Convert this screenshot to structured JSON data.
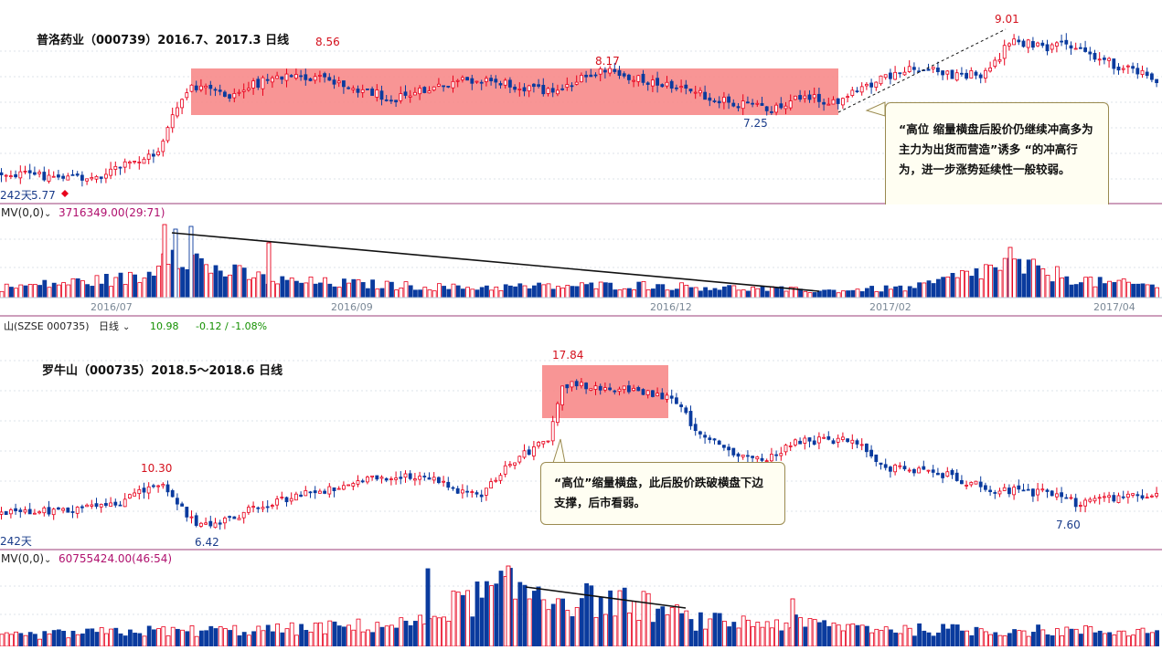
{
  "top_panel": {
    "title": "普洛药业（000739）2016.7、2017.3 日线",
    "days_label": "242天",
    "low_label": "5.77",
    "high_label": "9.01",
    "box_high_label": "8.56",
    "box_mid_label": "8.17",
    "box_low_label": "7.25",
    "volume_indicator_name": "MV(0,0)",
    "volume_indicator_value": "3716349.00(29:71)",
    "date_labels": [
      "2016/07",
      "2016/09",
      "2016/12",
      "2017/02",
      "2017/04"
    ],
    "callout_text": "“高位 缩量横盘后股价仍继续冲高多为主力为出货而营造”诱多 “的冲高行为，进一步涨势延续性一般较弱。"
  },
  "bottom_header": {
    "stock": "山(SZSE 000735)",
    "period": "日线",
    "price": "10.98",
    "change": "-0.12 / -1.08%"
  },
  "bottom_panel": {
    "title": "罗牛山（000735）2018.5～2018.6 日线",
    "days_label": "242天",
    "peak_label": "17.84",
    "left_high_label": "10.30",
    "left_low_label": "6.42",
    "right_low_label": "7.60",
    "volume_indicator_name": "MV(0,0)",
    "volume_indicator_value": "60755424.00(46:54)",
    "callout_text": "“高位”缩量横盘，此后股价跌破横盘下边支撑，后市看弱。"
  },
  "colors": {
    "up": "#e8001c",
    "down": "#0a3b9e",
    "box": "#f78a8a",
    "divider": "#9b3d7a",
    "grid": "#b9c8d4"
  },
  "chart_data": [
    {
      "type": "candlestick",
      "title": "普洛药业（000739）2016.7、2017.3 日线",
      "x_tick_labels": [
        "2016/07",
        "2016/09",
        "2016/12",
        "2017/02",
        "2017/04"
      ],
      "series": [
        {
          "name": "close",
          "keypoints": [
            {
              "x": "start",
              "y": 6.0
            },
            {
              "x": "lowest",
              "y": 5.77
            },
            {
              "x": "breakout",
              "y": 8.2
            },
            {
              "x": "box high",
              "y": 8.56
            },
            {
              "x": "box",
              "y": 8.17
            },
            {
              "x": "box low",
              "y": 7.25
            },
            {
              "x": "peak",
              "y": 9.01
            },
            {
              "x": "end",
              "y": 8.3
            }
          ]
        }
      ],
      "annotations": [
        "8.56",
        "8.17",
        "7.25",
        "9.01",
        "5.77"
      ]
    },
    {
      "type": "candlestick",
      "title": "罗牛山（000735）2018.5～2018.6 日线",
      "series": [
        {
          "name": "close",
          "keypoints": [
            {
              "x": "start",
              "y": 8.5
            },
            {
              "x": "high",
              "y": 10.3
            },
            {
              "x": "low",
              "y": 6.42
            },
            {
              "x": "peak",
              "y": 17.84
            },
            {
              "x": "low",
              "y": 7.6
            },
            {
              "x": "end",
              "y": 10.98
            }
          ]
        }
      ],
      "annotations": [
        "17.84",
        "10.30",
        "6.42",
        "7.60"
      ]
    }
  ]
}
